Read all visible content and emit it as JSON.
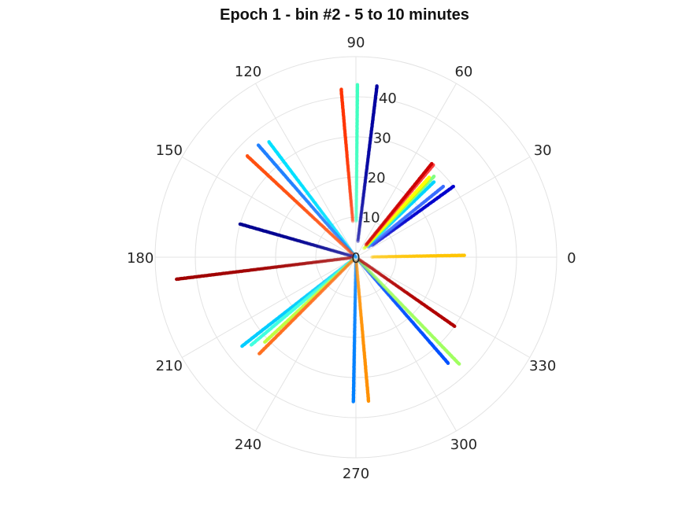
{
  "chart_data": {
    "type": "scatter",
    "subtype": "polar",
    "title": "Epoch 1 - bin #2 - 5 to 10 minutes",
    "radial_ticks": [
      "0",
      "10",
      "20",
      "30",
      "40"
    ],
    "radial_range": [
      0,
      50
    ],
    "angular_ticks": [
      "0",
      "30",
      "60",
      "90",
      "120",
      "150",
      "180",
      "210",
      "240",
      "270",
      "300",
      "330"
    ],
    "angular_unit": "degrees",
    "grid": true,
    "colormap": "jet",
    "series": [
      {
        "color": "#ffc400",
        "angle": 1,
        "r_min": 4,
        "r_max": 27
      },
      {
        "color": "#0000cc",
        "angle": 36,
        "r_min": 5,
        "r_max": 30
      },
      {
        "color": "#3a6dff",
        "angle": 39,
        "r_min": 4,
        "r_max": 28
      },
      {
        "color": "#00d4ff",
        "angle": 44,
        "r_min": 4,
        "r_max": 27
      },
      {
        "color": "#80ff80",
        "angle": 46,
        "r_min": 4,
        "r_max": 28
      },
      {
        "color": "#c8ff00",
        "angle": 47,
        "r_min": 3,
        "r_max": 26
      },
      {
        "color": "#ffff00",
        "angle": 47.5,
        "r_min": 4,
        "r_max": 27
      },
      {
        "color": "#ff4040",
        "angle": 50,
        "r_min": 4,
        "r_max": 30
      },
      {
        "color": "#cc0000",
        "angle": 51,
        "r_min": 4,
        "r_max": 30
      },
      {
        "color": "#0000a0",
        "angle": 83,
        "r_min": 4,
        "r_max": 43
      },
      {
        "color": "#40ffc0",
        "angle": 89.5,
        "r_min": 9,
        "r_max": 43
      },
      {
        "color": "#ff3300",
        "angle": 95,
        "r_min": 9,
        "r_max": 42
      },
      {
        "color": "#00e0ff",
        "angle": 127,
        "r_min": 0,
        "r_max": 36
      },
      {
        "color": "#2080ff",
        "angle": 131,
        "r_min": 0,
        "r_max": 37
      },
      {
        "color": "#ff5010",
        "angle": 137,
        "r_min": 1,
        "r_max": 37
      },
      {
        "color": "#000090",
        "angle": 164,
        "r_min": 1,
        "r_max": 30
      },
      {
        "color": "#a00000",
        "angle": 187,
        "r_min": 1,
        "r_max": 45
      },
      {
        "color": "#00ccff",
        "angle": 218,
        "r_min": 1,
        "r_max": 36
      },
      {
        "color": "#40ffe0",
        "angle": 220,
        "r_min": 1,
        "r_max": 34
      },
      {
        "color": "#c0ff40",
        "angle": 223,
        "r_min": 1,
        "r_max": 31
      },
      {
        "color": "#ff7020",
        "angle": 225,
        "r_min": 1,
        "r_max": 34
      },
      {
        "color": "#0080ff",
        "angle": 269,
        "r_min": 1,
        "r_max": 36
      },
      {
        "color": "#ff9000",
        "angle": 275,
        "r_min": 1,
        "r_max": 36
      },
      {
        "color": "#0050ff",
        "angle": 311,
        "r_min": 1,
        "r_max": 35
      },
      {
        "color": "#a0ff60",
        "angle": 314,
        "r_min": 1,
        "r_max": 37
      },
      {
        "color": "#b00000",
        "angle": 325,
        "r_min": 1,
        "r_max": 30
      }
    ]
  }
}
